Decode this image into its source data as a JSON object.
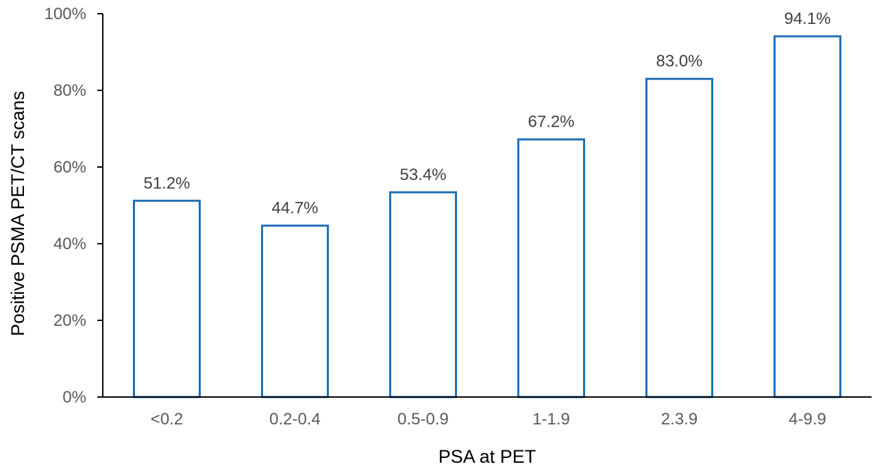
{
  "chart_data": {
    "type": "bar",
    "categories": [
      "<0.2",
      "0.2-0.4",
      "0.5-0.9",
      "1-1.9",
      "2.3.9",
      "4-9.9"
    ],
    "values": [
      51.2,
      44.7,
      53.4,
      67.2,
      83.0,
      94.1
    ],
    "data_labels": [
      "51.2%",
      "44.7%",
      "53.4%",
      "67.2%",
      "83.0%",
      "94.1%"
    ],
    "xlabel": "PSA at PET",
    "ylabel": "Positive PSMA PET/CT scans",
    "ylim": [
      0,
      100
    ],
    "yticks": [
      0,
      20,
      40,
      60,
      80,
      100
    ],
    "ytick_labels": [
      "0%",
      "20%",
      "40%",
      "60%",
      "80%",
      "100%"
    ],
    "grid": false,
    "legend": "none",
    "colors": {
      "bar_stroke": "#1f6fb4",
      "bar_fill": "#ffffff",
      "axis": "#000000",
      "tick_text": "#595959",
      "label_text": "#404040",
      "axis_title_text": "#000000"
    }
  }
}
